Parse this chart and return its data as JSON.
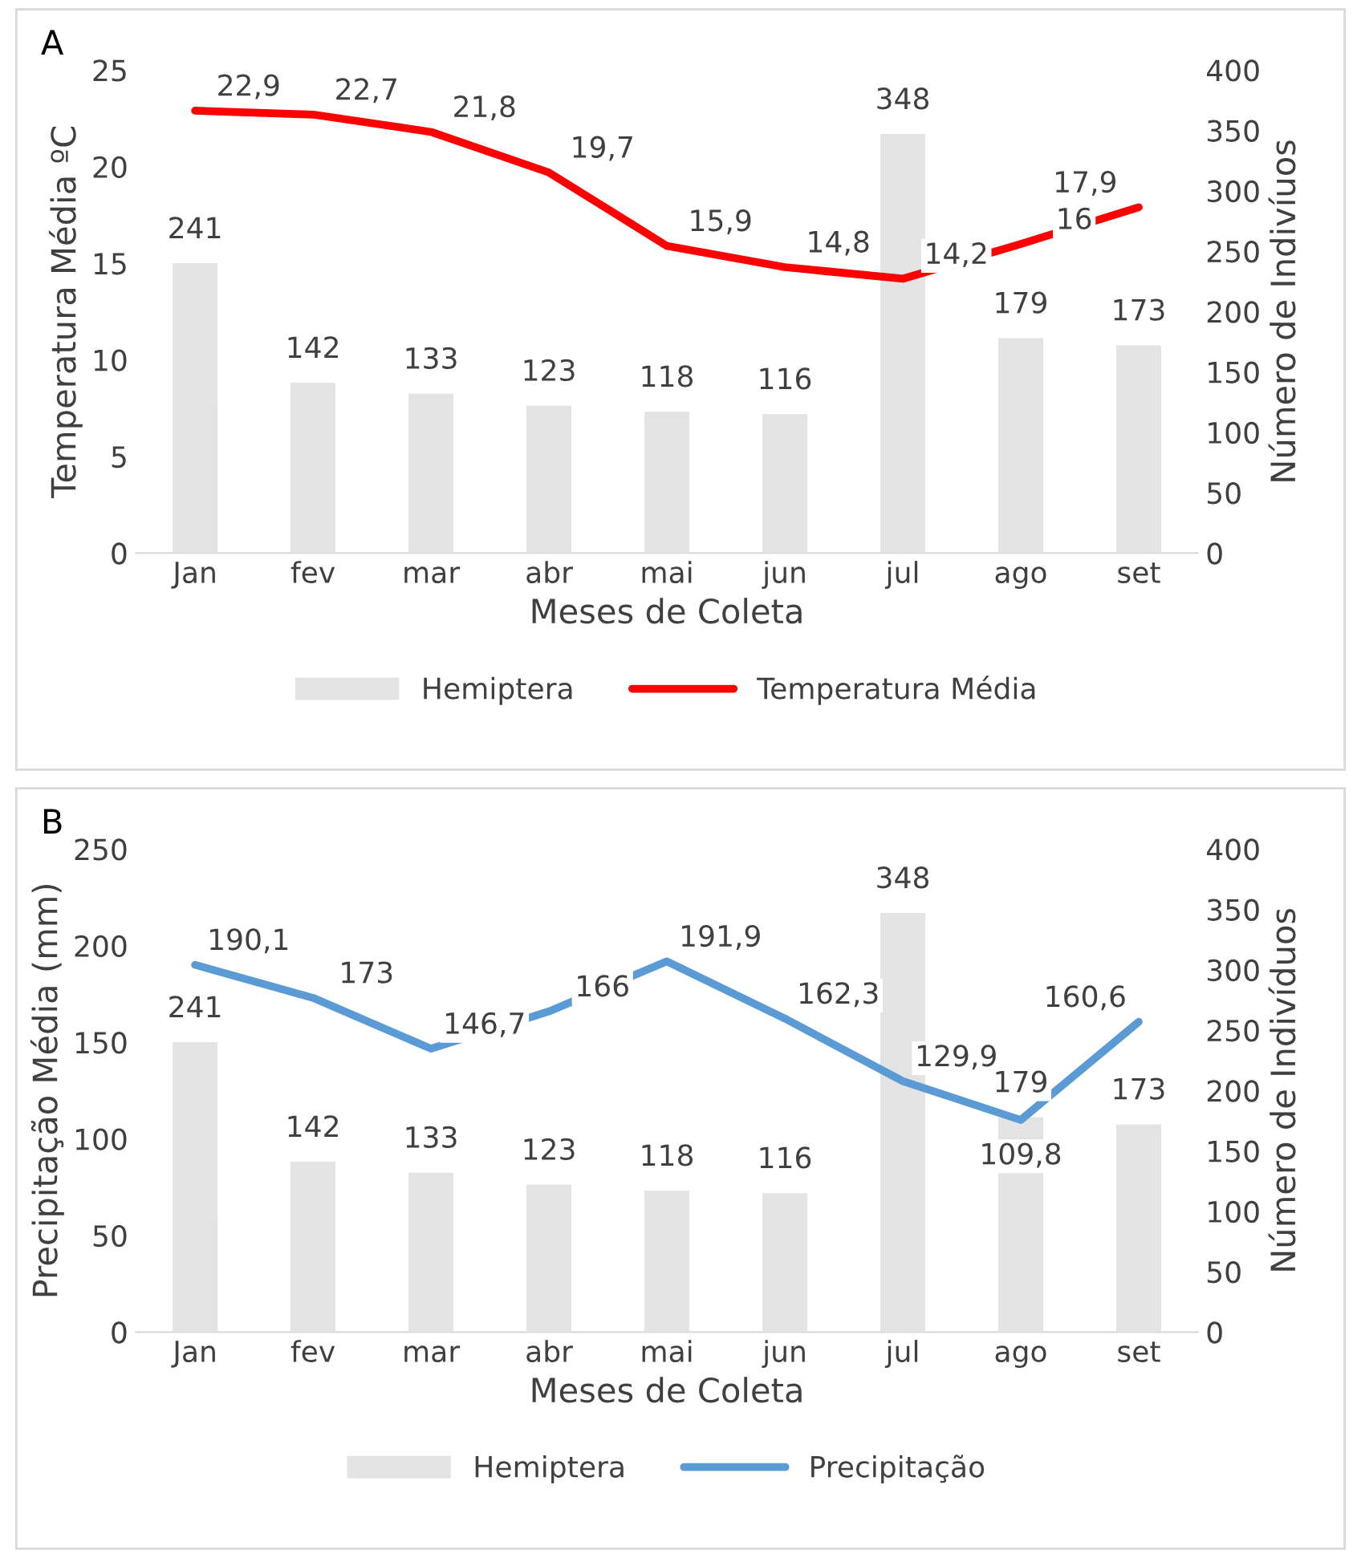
{
  "chart_data": [
    {
      "type": "bar",
      "annotations": [
        "A"
      ],
      "xlabel": "Meses de Coleta",
      "ylabel": "Temperatura Média ºC",
      "y2label": "Número de Indivíuos",
      "categories": [
        "Jan",
        "fev",
        "mar",
        "abr",
        "mai",
        "jun",
        "jul",
        "ago",
        "set"
      ],
      "ylim": [
        0,
        25
      ],
      "yticks": [
        0,
        5,
        10,
        15,
        20,
        25
      ],
      "y2lim": [
        0,
        400
      ],
      "y2ticks": [
        0,
        50,
        100,
        150,
        200,
        250,
        300,
        350,
        400
      ],
      "legend": "bottom",
      "series": [
        {
          "name": "Hemiptera",
          "axis": "y2",
          "color": "#e3e3e3",
          "values": [
            241,
            142,
            133,
            123,
            118,
            116,
            348,
            179,
            173
          ],
          "value_labels": [
            "241",
            "142",
            "133",
            "123",
            "118",
            "116",
            "348",
            "179",
            "173"
          ]
        },
        {
          "name": "Temperatura Média",
          "type": "line",
          "axis": "y",
          "color": "#ff0000",
          "values": [
            22.9,
            22.7,
            21.8,
            19.7,
            15.9,
            14.8,
            14.2,
            16,
            17.9
          ],
          "value_labels": [
            "22,9",
            "22,7",
            "21,8",
            "19,7",
            "15,9",
            "14,8",
            "14,2",
            "16",
            "17,9"
          ]
        }
      ]
    },
    {
      "type": "bar",
      "annotations": [
        "B"
      ],
      "xlabel": "Meses de Coleta",
      "ylabel": "Precipitação Média (mm)",
      "y2label": "Número de Indivíduos",
      "categories": [
        "Jan",
        "fev",
        "mar",
        "abr",
        "mai",
        "jun",
        "jul",
        "ago",
        "set"
      ],
      "ylim": [
        0,
        250
      ],
      "yticks": [
        0,
        50,
        100,
        150,
        200,
        250
      ],
      "y2lim": [
        0,
        400
      ],
      "y2ticks": [
        0,
        50,
        100,
        150,
        200,
        250,
        300,
        350,
        400
      ],
      "legend": "bottom",
      "series": [
        {
          "name": "Hemiptera",
          "axis": "y2",
          "color": "#e3e3e3",
          "values": [
            241,
            142,
            133,
            123,
            118,
            116,
            348,
            179,
            173
          ],
          "value_labels": [
            "241",
            "142",
            "133",
            "123",
            "118",
            "116",
            "348",
            "179",
            "173"
          ]
        },
        {
          "name": "Precipitação",
          "type": "line",
          "axis": "y",
          "color": "#5b9bd5",
          "values": [
            190.1,
            173,
            146.7,
            166,
            191.9,
            162.3,
            129.9,
            109.8,
            160.6
          ],
          "value_labels": [
            "190,1",
            "173",
            "146,7",
            "166",
            "191,9",
            "162,3",
            "129,9",
            "109,8",
            "160,6"
          ]
        }
      ]
    }
  ]
}
